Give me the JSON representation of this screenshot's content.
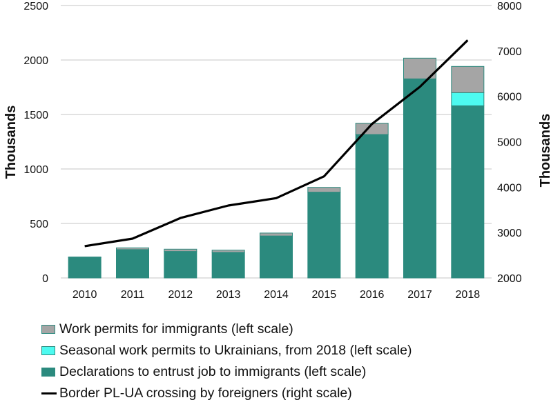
{
  "chart_data": {
    "type": "bar",
    "stacked": true,
    "categories": [
      "2010",
      "2011",
      "2012",
      "2013",
      "2014",
      "2015",
      "2016",
      "2017",
      "2018"
    ],
    "left_axis": {
      "label": "Thousands",
      "ylim": [
        0,
        2500
      ],
      "ticks": [
        0,
        500,
        1000,
        1500,
        2000,
        2500
      ]
    },
    "right_axis": {
      "label": "Thousands",
      "ylim": [
        2000,
        8000
      ],
      "ticks": [
        2000,
        3000,
        4000,
        5000,
        6000,
        7000,
        8000
      ]
    },
    "grid": true,
    "legend_position": "bottom",
    "series": [
      {
        "name": "Declarations to entrust job to immigrants (left scale)",
        "type": "bar",
        "axis": "left",
        "color": "#2b8a7e",
        "values": [
          187,
          260,
          243,
          234,
          385,
          787,
          1316,
          1827,
          1580
        ]
      },
      {
        "name": "Seasonal work permits to Ukrainians, from 2018 (left scale)",
        "type": "bar",
        "axis": "left",
        "color": "#4dfaf0",
        "values": [
          0,
          0,
          0,
          0,
          0,
          0,
          0,
          0,
          120
        ]
      },
      {
        "name": "Work permits for immigrants (left scale)",
        "type": "bar",
        "axis": "left",
        "color": "#a5a5a5",
        "values": [
          5,
          16,
          21,
          21,
          27,
          44,
          104,
          190,
          241
        ]
      },
      {
        "name": "Border PL-UA crossing by foreigners (right scale)",
        "type": "line",
        "axis": "right",
        "color": "#000000",
        "values": [
          2700,
          2866,
          3320,
          3595,
          3757,
          4238,
          5390,
          6208,
          7236
        ]
      }
    ],
    "legend_order": [
      2,
      1,
      0,
      3
    ]
  }
}
